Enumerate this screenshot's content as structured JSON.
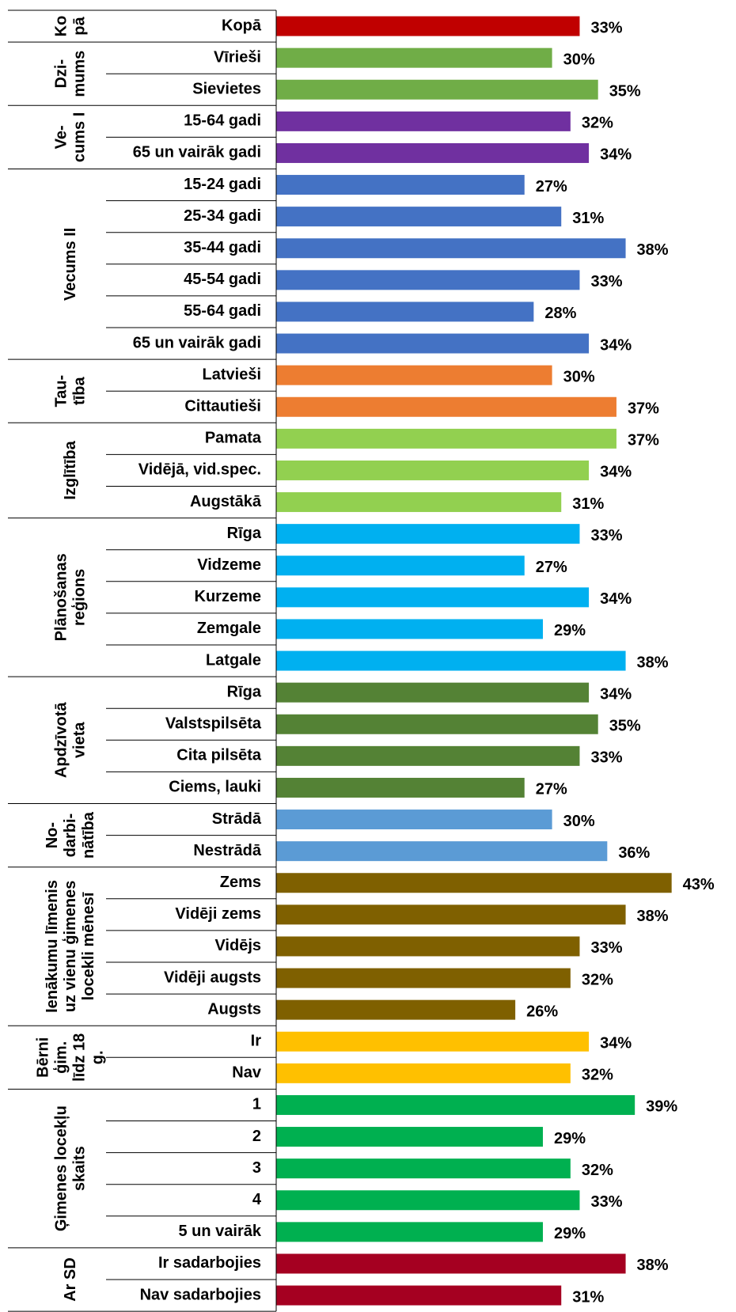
{
  "chart_data": {
    "type": "bar",
    "xlim": [
      0,
      50
    ],
    "groups": [
      {
        "lines": [
          "Ko",
          "pā"
        ],
        "color": "#c00000",
        "categories": [
          "Kopā"
        ],
        "values": [
          33
        ],
        "value_labels": [
          "33%"
        ]
      },
      {
        "lines": [
          "Dzi-",
          "mums"
        ],
        "color": "#70ad47",
        "categories": [
          "Vīrieši",
          "Sievietes"
        ],
        "values": [
          30,
          35
        ],
        "value_labels": [
          "30%",
          "35%"
        ]
      },
      {
        "lines": [
          "Ve-",
          "cums I"
        ],
        "color": "#7030a0",
        "categories": [
          "15-64 gadi",
          "65 un vairāk gadi"
        ],
        "values": [
          32,
          34
        ],
        "value_labels": [
          "32%",
          "34%"
        ]
      },
      {
        "lines": [
          "Vecums II"
        ],
        "color": "#4472c4",
        "categories": [
          "15-24 gadi",
          "25-34 gadi",
          "35-44 gadi",
          "45-54 gadi",
          "55-64 gadi",
          "65 un vairāk gadi"
        ],
        "values": [
          27,
          31,
          38,
          33,
          28,
          34
        ],
        "value_labels": [
          "27%",
          "31%",
          "38%",
          "33%",
          "28%",
          "34%"
        ]
      },
      {
        "lines": [
          "Tau-",
          "tība"
        ],
        "color": "#ed7d31",
        "categories": [
          "Latvieši",
          "Cittautieši"
        ],
        "values": [
          30,
          37
        ],
        "value_labels": [
          "30%",
          "37%"
        ]
      },
      {
        "lines": [
          "Izglītība"
        ],
        "color": "#92d050",
        "categories": [
          "Pamata",
          "Vidējā, vid.spec.",
          "Augstākā"
        ],
        "values": [
          37,
          34,
          31
        ],
        "value_labels": [
          "37%",
          "34%",
          "31%"
        ]
      },
      {
        "lines": [
          "Plānošanas",
          "reģions"
        ],
        "color": "#00b0f0",
        "categories": [
          "Rīga",
          "Vidzeme",
          "Kurzeme",
          "Zemgale",
          "Latgale"
        ],
        "values": [
          33,
          27,
          34,
          29,
          38
        ],
        "value_labels": [
          "33%",
          "27%",
          "34%",
          "29%",
          "38%"
        ]
      },
      {
        "lines": [
          "Apdzīvotā",
          "vieta"
        ],
        "color": "#548235",
        "categories": [
          "Rīga",
          "Valstspilsēta",
          "Cita pilsēta",
          "Ciems, lauki"
        ],
        "values": [
          34,
          35,
          33,
          27
        ],
        "value_labels": [
          "34%",
          "35%",
          "33%",
          "27%"
        ]
      },
      {
        "lines": [
          "No-",
          "darbi-",
          "nātība"
        ],
        "color": "#5b9bd5",
        "categories": [
          "Strādā",
          "Nestrādā"
        ],
        "values": [
          30,
          36
        ],
        "value_labels": [
          "30%",
          "36%"
        ]
      },
      {
        "lines": [
          "Ienākumu līmenis",
          "uz vienu ģimenes",
          "locekli mēnesī"
        ],
        "color": "#7f6000",
        "categories": [
          "Zems",
          "Vidēji zems",
          "Vidējs",
          "Vidēji augsts",
          "Augsts"
        ],
        "values": [
          43,
          38,
          33,
          32,
          26
        ],
        "value_labels": [
          "43%",
          "38%",
          "33%",
          "32%",
          "26%"
        ]
      },
      {
        "lines": [
          "Bērni",
          "ģim.",
          "līdz 18",
          "g."
        ],
        "color": "#ffc000",
        "categories": [
          "Ir",
          "Nav"
        ],
        "values": [
          34,
          32
        ],
        "value_labels": [
          "34%",
          "32%"
        ]
      },
      {
        "lines": [
          "Ģimenes locekļu",
          "skaits"
        ],
        "color": "#00b050",
        "categories": [
          "1",
          "2",
          "3",
          "4",
          "5 un vairāk"
        ],
        "values": [
          39,
          29,
          32,
          33,
          29
        ],
        "value_labels": [
          "39%",
          "29%",
          "32%",
          "33%",
          "29%"
        ]
      },
      {
        "lines": [
          "Ar SD"
        ],
        "color": "#a50021",
        "categories": [
          "Ir sadarbojies",
          "Nav sadarbojies"
        ],
        "values": [
          38,
          31
        ],
        "value_labels": [
          "38%",
          "31%"
        ]
      }
    ]
  }
}
